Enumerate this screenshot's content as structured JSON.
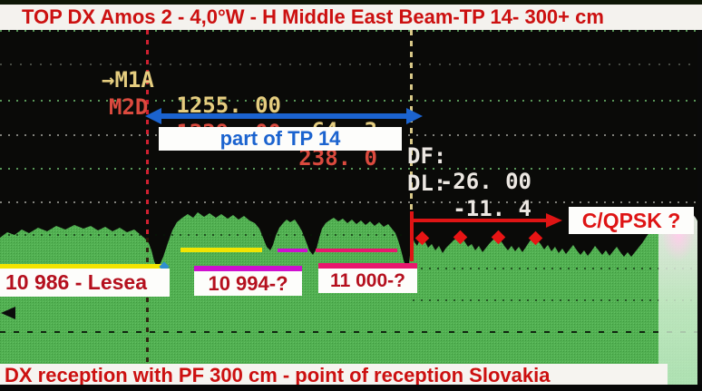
{
  "title": "TOP DX Amos 2 - 4,0°W - H Middle East Beam-TP 14- 300+ cm",
  "caption": "DX reception with PF 300 cm - point of reception Slovakia",
  "readout": {
    "rows": [
      {
        "prefix": "→",
        "name": "M1A",
        "freq": "1255. 00",
        "level": "64. 3",
        "delta_label": "DF:",
        "delta_value": "-26. 00"
      },
      {
        "prefix": "",
        "name": "M2D",
        "freq": "1229. 00",
        "level": "238. 0",
        "delta_label": "DL:",
        "delta_value": "-11. 4"
      }
    ]
  },
  "annotations": {
    "tp_span_label": "part of TP 14",
    "qpsk_label": "C/QPSK ?",
    "transponders": [
      {
        "label": "10 986 - Lesea",
        "underline_color": "#f2e400"
      },
      {
        "label": "10 994-?",
        "underline_color": "#cf10cf"
      },
      {
        "label": "11 000-?",
        "underline_color": "#e8186e"
      }
    ]
  },
  "colors": {
    "caption_red": "#cc1010",
    "marker1_yellow": "#e5cd7f",
    "marker2_red": "#db4a3e",
    "readout_white": "#ece7e2",
    "arrow_blue": "#1b63cf",
    "arrow_red": "#de1414",
    "line_yellow": "#f2e400",
    "line_magenta": "#cf10cf",
    "line_pink": "#e8186e",
    "spectrum_green": "#52b052",
    "marker_line_red": "#cf2030",
    "marker_line_yellow": "#d8c887"
  },
  "spectrum": {
    "fill": "#52b052",
    "points": [
      [
        0,
        262
      ],
      [
        8,
        256
      ],
      [
        16,
        259
      ],
      [
        24,
        253
      ],
      [
        32,
        257
      ],
      [
        42,
        251
      ],
      [
        52,
        255
      ],
      [
        62,
        249
      ],
      [
        72,
        253
      ],
      [
        82,
        248
      ],
      [
        92,
        252
      ],
      [
        100,
        249
      ],
      [
        108,
        254
      ],
      [
        116,
        250
      ],
      [
        124,
        255
      ],
      [
        132,
        251
      ],
      [
        140,
        256
      ],
      [
        148,
        253
      ],
      [
        154,
        258
      ],
      [
        160,
        263
      ],
      [
        164,
        268
      ],
      [
        167,
        276
      ],
      [
        170,
        288
      ],
      [
        173,
        295
      ],
      [
        176,
        292
      ],
      [
        180,
        283
      ],
      [
        185,
        268
      ],
      [
        190,
        254
      ],
      [
        195,
        245
      ],
      [
        201,
        240
      ],
      [
        207,
        236
      ],
      [
        213,
        240
      ],
      [
        218,
        234
      ],
      [
        225,
        239
      ],
      [
        231,
        235
      ],
      [
        238,
        240
      ],
      [
        244,
        236
      ],
      [
        251,
        241
      ],
      [
        257,
        237
      ],
      [
        263,
        242
      ],
      [
        269,
        238
      ],
      [
        275,
        243
      ],
      [
        281,
        246
      ],
      [
        286,
        252
      ],
      [
        290,
        262
      ],
      [
        294,
        272
      ],
      [
        298,
        276
      ],
      [
        301,
        270
      ],
      [
        304,
        260
      ],
      [
        308,
        251
      ],
      [
        312,
        246
      ],
      [
        316,
        242
      ],
      [
        320,
        245
      ],
      [
        325,
        242
      ],
      [
        329,
        248
      ],
      [
        333,
        255
      ],
      [
        337,
        265
      ],
      [
        341,
        276
      ],
      [
        345,
        281
      ],
      [
        349,
        274
      ],
      [
        352,
        262
      ],
      [
        355,
        252
      ],
      [
        359,
        246
      ],
      [
        363,
        243
      ],
      [
        368,
        240
      ],
      [
        373,
        244
      ],
      [
        378,
        241
      ],
      [
        383,
        246
      ],
      [
        388,
        242
      ],
      [
        393,
        247
      ],
      [
        398,
        243
      ],
      [
        403,
        248
      ],
      [
        408,
        244
      ],
      [
        413,
        249
      ],
      [
        418,
        245
      ],
      [
        423,
        250
      ],
      [
        428,
        247
      ],
      [
        432,
        252
      ],
      [
        436,
        257
      ],
      [
        439,
        265
      ],
      [
        442,
        275
      ],
      [
        445,
        287
      ],
      [
        448,
        295
      ],
      [
        451,
        291
      ],
      [
        453,
        272
      ],
      [
        455,
        262
      ],
      [
        457,
        267
      ],
      [
        460,
        271
      ],
      [
        463,
        264
      ],
      [
        466,
        261
      ],
      [
        469,
        267
      ],
      [
        472,
        273
      ],
      [
        476,
        269
      ],
      [
        480,
        276
      ],
      [
        484,
        271
      ],
      [
        488,
        279
      ],
      [
        492,
        273
      ],
      [
        496,
        269
      ],
      [
        500,
        265
      ],
      [
        504,
        262
      ],
      [
        508,
        260
      ],
      [
        512,
        266
      ],
      [
        516,
        272
      ],
      [
        520,
        269
      ],
      [
        524,
        276
      ],
      [
        528,
        271
      ],
      [
        532,
        278
      ],
      [
        536,
        273
      ],
      [
        540,
        268
      ],
      [
        544,
        264
      ],
      [
        548,
        261
      ],
      [
        552,
        265
      ],
      [
        556,
        271
      ],
      [
        560,
        276
      ],
      [
        564,
        271
      ],
      [
        568,
        277
      ],
      [
        572,
        272
      ],
      [
        576,
        278
      ],
      [
        580,
        272
      ],
      [
        584,
        266
      ],
      [
        588,
        262
      ],
      [
        592,
        264
      ],
      [
        596,
        269
      ],
      [
        600,
        275
      ],
      [
        604,
        270
      ],
      [
        608,
        277
      ],
      [
        612,
        272
      ],
      [
        616,
        279
      ],
      [
        620,
        274
      ],
      [
        624,
        280
      ],
      [
        628,
        275
      ],
      [
        632,
        270
      ],
      [
        636,
        276
      ],
      [
        640,
        281
      ],
      [
        644,
        276
      ],
      [
        648,
        282
      ],
      [
        652,
        277
      ],
      [
        656,
        271
      ],
      [
        660,
        276
      ],
      [
        664,
        281
      ],
      [
        668,
        276
      ],
      [
        672,
        282
      ],
      [
        676,
        277
      ],
      [
        680,
        272
      ],
      [
        684,
        278
      ],
      [
        688,
        283
      ],
      [
        692,
        278
      ],
      [
        696,
        283
      ],
      [
        700,
        278
      ],
      [
        704,
        273
      ],
      [
        708,
        268
      ],
      [
        712,
        262
      ],
      [
        716,
        256
      ],
      [
        720,
        250
      ],
      [
        724,
        245
      ],
      [
        729,
        241
      ],
      [
        734,
        237
      ],
      [
        740,
        234
      ],
      [
        746,
        232
      ],
      [
        752,
        235
      ],
      [
        758,
        233
      ],
      [
        764,
        237
      ],
      [
        769,
        243
      ],
      [
        774,
        248
      ],
      [
        774,
        424
      ],
      [
        0,
        424
      ]
    ],
    "peak_markers": [
      [
        466,
        263
      ],
      [
        508,
        262
      ],
      [
        550,
        262
      ],
      [
        591,
        263
      ]
    ]
  }
}
